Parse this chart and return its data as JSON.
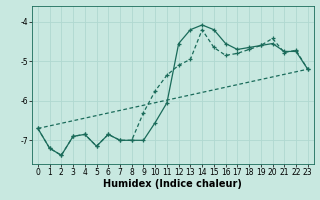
{
  "title": "",
  "xlabel": "Humidex (Indice chaleur)",
  "bg_color": "#c8e8e0",
  "grid_color": "#b0d8d0",
  "line_color": "#1a6b5a",
  "xlim": [
    -0.5,
    23.5
  ],
  "ylim": [
    -7.6,
    -3.6
  ],
  "yticks": [
    -7,
    -6,
    -5,
    -4
  ],
  "xticks": [
    0,
    1,
    2,
    3,
    4,
    5,
    6,
    7,
    8,
    9,
    10,
    11,
    12,
    13,
    14,
    15,
    16,
    17,
    18,
    19,
    20,
    21,
    22,
    23
  ],
  "line1_x": [
    0,
    1,
    2,
    3,
    4,
    5,
    6,
    7,
    8,
    9,
    10,
    11,
    12,
    13,
    14,
    15,
    16,
    17,
    18,
    19,
    20,
    21,
    22,
    23
  ],
  "line1_y": [
    -6.7,
    -7.2,
    -7.38,
    -6.9,
    -6.85,
    -7.15,
    -6.85,
    -7.0,
    -7.0,
    -7.0,
    -6.55,
    -6.05,
    -4.55,
    -4.2,
    -4.08,
    -4.2,
    -4.55,
    -4.7,
    -4.65,
    -4.6,
    -4.55,
    -4.75,
    -4.75,
    -5.2
  ],
  "line2_x": [
    0,
    1,
    2,
    3,
    4,
    5,
    6,
    7,
    8,
    9,
    10,
    11,
    12,
    13,
    14,
    15,
    16,
    17,
    18,
    19,
    20,
    21,
    22,
    23
  ],
  "line2_y": [
    -6.7,
    -7.2,
    -7.38,
    -6.9,
    -6.85,
    -7.15,
    -6.85,
    -7.0,
    -7.0,
    -6.3,
    -5.75,
    -5.35,
    -5.1,
    -4.95,
    -4.2,
    -4.65,
    -4.85,
    -4.8,
    -4.7,
    -4.6,
    -4.42,
    -4.78,
    -4.72,
    -5.2
  ],
  "line3_x": [
    0,
    23
  ],
  "line3_y": [
    -6.7,
    -5.2
  ],
  "axis_fontsize": 7,
  "tick_fontsize": 5.5
}
